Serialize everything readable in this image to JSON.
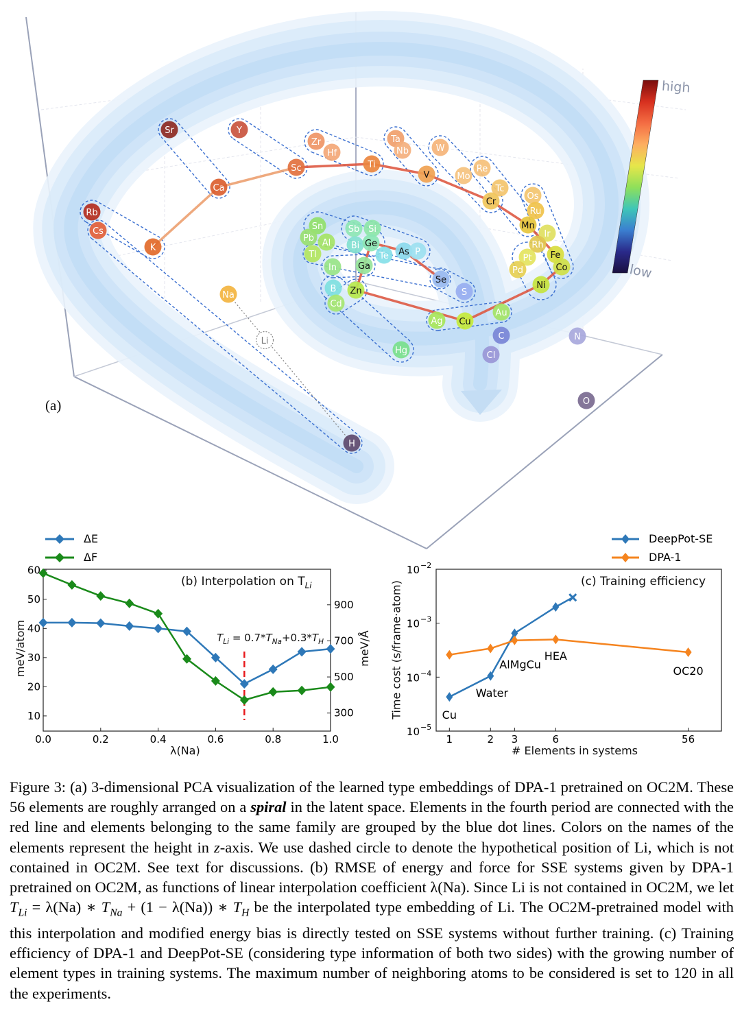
{
  "panel_a": {
    "label": "(a)",
    "colorbar": {
      "high": "high",
      "low": "low",
      "colors": [
        "#7a0d0d",
        "#d7301f",
        "#f46d43",
        "#fdae61",
        "#e6e64a",
        "#8fe05a",
        "#3ec6b8",
        "#3b7fd0",
        "#2a2a8a",
        "#1a1040"
      ]
    },
    "fourth_period_color": "#de5a44",
    "group_line_color": "#3a6fd0",
    "elements": [
      {
        "symbol": "Sr",
        "color": "#8e2a22"
      },
      {
        "symbol": "Y",
        "color": "#c9543e"
      },
      {
        "symbol": "Zr",
        "color": "#ef9566"
      },
      {
        "symbol": "Hf",
        "color": "#f3a777"
      },
      {
        "symbol": "Ta",
        "color": "#f0a06c"
      },
      {
        "symbol": "Nb",
        "color": "#f4b07e"
      },
      {
        "symbol": "W",
        "color": "#f5b47a"
      },
      {
        "symbol": "Sc",
        "color": "#e2713f"
      },
      {
        "symbol": "Ti",
        "color": "#ea853f"
      },
      {
        "symbol": "V",
        "color": "#f0a252"
      },
      {
        "symbol": "Ca",
        "color": "#db5f30"
      },
      {
        "symbol": "Mo",
        "color": "#f5c27e"
      },
      {
        "symbol": "Re",
        "color": "#f5c07a"
      },
      {
        "symbol": "Tc",
        "color": "#f3c46c"
      },
      {
        "symbol": "Cr",
        "color": "#f0c55a"
      },
      {
        "symbol": "Os",
        "color": "#f3c46e"
      },
      {
        "symbol": "Ru",
        "color": "#f0c24a"
      },
      {
        "symbol": "Mn",
        "color": "#e6c53c"
      },
      {
        "symbol": "Ir",
        "color": "#dfe060"
      },
      {
        "symbol": "Rh",
        "color": "#e2c850"
      },
      {
        "symbol": "Fe",
        "color": "#d8dc3e"
      },
      {
        "symbol": "Co",
        "color": "#cfe046"
      },
      {
        "symbol": "Pt",
        "color": "#e4e460"
      },
      {
        "symbol": "Pd",
        "color": "#e6cf52"
      },
      {
        "symbol": "Ni",
        "color": "#c6e43e"
      },
      {
        "symbol": "Rb",
        "color": "#b42e1e"
      },
      {
        "symbol": "Cs",
        "color": "#e2603a"
      },
      {
        "symbol": "K",
        "color": "#e26a2a"
      },
      {
        "symbol": "Na",
        "color": "#f3b440"
      },
      {
        "symbol": "Li",
        "color": "#ffffff"
      },
      {
        "symbol": "H",
        "color": "#5e4a6e"
      },
      {
        "symbol": "Sn",
        "color": "#92e06a"
      },
      {
        "symbol": "Pb",
        "color": "#9ae070"
      },
      {
        "symbol": "Al",
        "color": "#a6e466"
      },
      {
        "symbol": "Tl",
        "color": "#b4e660"
      },
      {
        "symbol": "In",
        "color": "#98e488"
      },
      {
        "symbol": "Sb",
        "color": "#8ee6b4"
      },
      {
        "symbol": "Si",
        "color": "#8ee6a8"
      },
      {
        "symbol": "Bi",
        "color": "#82e0d0"
      },
      {
        "symbol": "Ge",
        "color": "#8ae6b4"
      },
      {
        "symbol": "Te",
        "color": "#86e0e8"
      },
      {
        "symbol": "As",
        "color": "#8ad8ec"
      },
      {
        "symbol": "P",
        "color": "#9ce0f0"
      },
      {
        "symbol": "Ga",
        "color": "#96e49a"
      },
      {
        "symbol": "Se",
        "color": "#98b8f0"
      },
      {
        "symbol": "S",
        "color": "#98aef0"
      },
      {
        "symbol": "B",
        "color": "#7ee0e0"
      },
      {
        "symbol": "Cd",
        "color": "#a6e670"
      },
      {
        "symbol": "Zn",
        "color": "#b6e84c"
      },
      {
        "symbol": "Ag",
        "color": "#a8e65a"
      },
      {
        "symbol": "Cu",
        "color": "#c6ea3a"
      },
      {
        "symbol": "Au",
        "color": "#a4e466"
      },
      {
        "symbol": "Hg",
        "color": "#7ae08c"
      },
      {
        "symbol": "C",
        "color": "#7a86d6"
      },
      {
        "symbol": "Cl",
        "color": "#9a96d6"
      },
      {
        "symbol": "N",
        "color": "#a8a8dc"
      },
      {
        "symbol": "O",
        "color": "#7a6a90"
      }
    ]
  },
  "chart_data": [
    {
      "type": "line",
      "title": "(b) Interpolation on T",
      "title_sub": "Li",
      "xlabel": "λ(Na)",
      "ylabel": "meV/atom",
      "ylabel_right": "meV/Å",
      "x": [
        0.0,
        0.1,
        0.2,
        0.3,
        0.4,
        0.5,
        0.6,
        0.7,
        0.8,
        0.9,
        1.0
      ],
      "xlim": [
        0.0,
        1.0
      ],
      "ylim": [
        4.8,
        60.3
      ],
      "ylim_right": [
        200,
        1097
      ],
      "xticks": [
        "0.0",
        "0.2",
        "0.4",
        "0.6",
        "0.8",
        "1.0"
      ],
      "yticks": [
        "10",
        "20",
        "30",
        "40",
        "50",
        "60"
      ],
      "yticks_right": [
        "300",
        "500",
        "700",
        "900"
      ],
      "series": [
        {
          "name": "ΔE",
          "axis": "left",
          "color": "#2e78b8",
          "values": [
            42,
            42,
            41.8,
            40.8,
            40,
            39,
            30,
            21,
            26,
            32,
            33
          ]
        },
        {
          "name": "ΔF",
          "axis": "right",
          "color": "#1a8a1a",
          "values": [
            1075,
            1010,
            949,
            908,
            851,
            600,
            478,
            372,
            417,
            425,
            444
          ]
        }
      ],
      "annotation": {
        "text_parts": [
          "T",
          "Li",
          " = 0.7*",
          "T",
          "Na",
          "+0.3*",
          "T",
          "H"
        ],
        "x": 0.7,
        "line_color": "#e8191c"
      },
      "legend": "top-left, outside"
    },
    {
      "type": "line",
      "title": "(c) Training efficiency",
      "xlabel": "# Elements in systems",
      "ylabel": "Time cost (s/frame·atom)",
      "xscale": "log",
      "yscale": "log",
      "xlim": [
        0.8,
        98
      ],
      "ylim": [
        1e-05,
        0.01
      ],
      "xticks": [
        1,
        2,
        3,
        6,
        56
      ],
      "yticks": [
        {
          "base": "10",
          "exp": "−5",
          "value": 1e-05
        },
        {
          "base": "10",
          "exp": "−4",
          "value": 0.0001
        },
        {
          "base": "10",
          "exp": "−3",
          "value": 0.001
        },
        {
          "base": "10",
          "exp": "−2",
          "value": 0.01
        }
      ],
      "series": [
        {
          "name": "DeepPot-SE",
          "color": "#2e78b8",
          "x": [
            1,
            2,
            3,
            6
          ],
          "values": [
            4.3e-05,
            0.000105,
            0.00065,
            0.002
          ],
          "end_marker": {
            "x": 8,
            "value": 0.003,
            "marker": "x"
          }
        },
        {
          "name": "DPA-1",
          "color": "#f5841f",
          "x": [
            1,
            2,
            3,
            6,
            56
          ],
          "values": [
            0.00026,
            0.00034,
            0.00048,
            0.0005,
            0.00029
          ]
        }
      ],
      "annotations": [
        {
          "text": "Cu",
          "x": 1,
          "value": 1.7e-05
        },
        {
          "text": "Water",
          "x": 2.05,
          "value": 4.3e-05
        },
        {
          "text": "AlMgCu",
          "x": 3.3,
          "value": 0.000145
        },
        {
          "text": "HEA",
          "x": 6,
          "value": 0.00021
        },
        {
          "text": "OC20",
          "x": 56,
          "value": 0.00011
        }
      ],
      "legend": "top-right, outside"
    }
  ],
  "caption": {
    "p1": "Figure 3:  (a) 3-dimensional PCA visualization of the learned type embeddings of DPA-1 pretrained on OC2M. These 56 elements are roughly arranged on a ",
    "spiral": "spiral",
    "p2": " in the latent space.  Elements in the fourth period are connected with the red line and elements belonging to the same family are grouped by the blue dot lines. Colors on the names of the elements represent the height in ",
    "z": "z",
    "p3": "-axis. We use dashed circle to denote the hypothetical position of Li, which is not contained in OC2M. See text for discussions. (b) RMSE of energy and force for SSE systems given by DPA-1 pretrained on OC2M, as functions of linear interpolation coefficient ",
    "lam": "λ(Na)",
    "p4": ". Since Li is not contained in OC2M, we let ",
    "formula": [
      "T",
      "Li",
      " = λ(Na) ∗ ",
      "T",
      "Na",
      " + (1 − λ(Na)) ∗ ",
      "T",
      "H"
    ],
    "p5": " be the interpolated type embedding of Li. The OC2M-pretrained model with this interpolation and modified energy bias is directly tested on SSE systems without further training. (c) Training efficiency of DPA-1 and DeepPot-SE (considering type information of both two sides) with the growing number of element types in training systems. The maximum number of neighboring atoms to be considered is set to 120 in all the experiments."
  }
}
